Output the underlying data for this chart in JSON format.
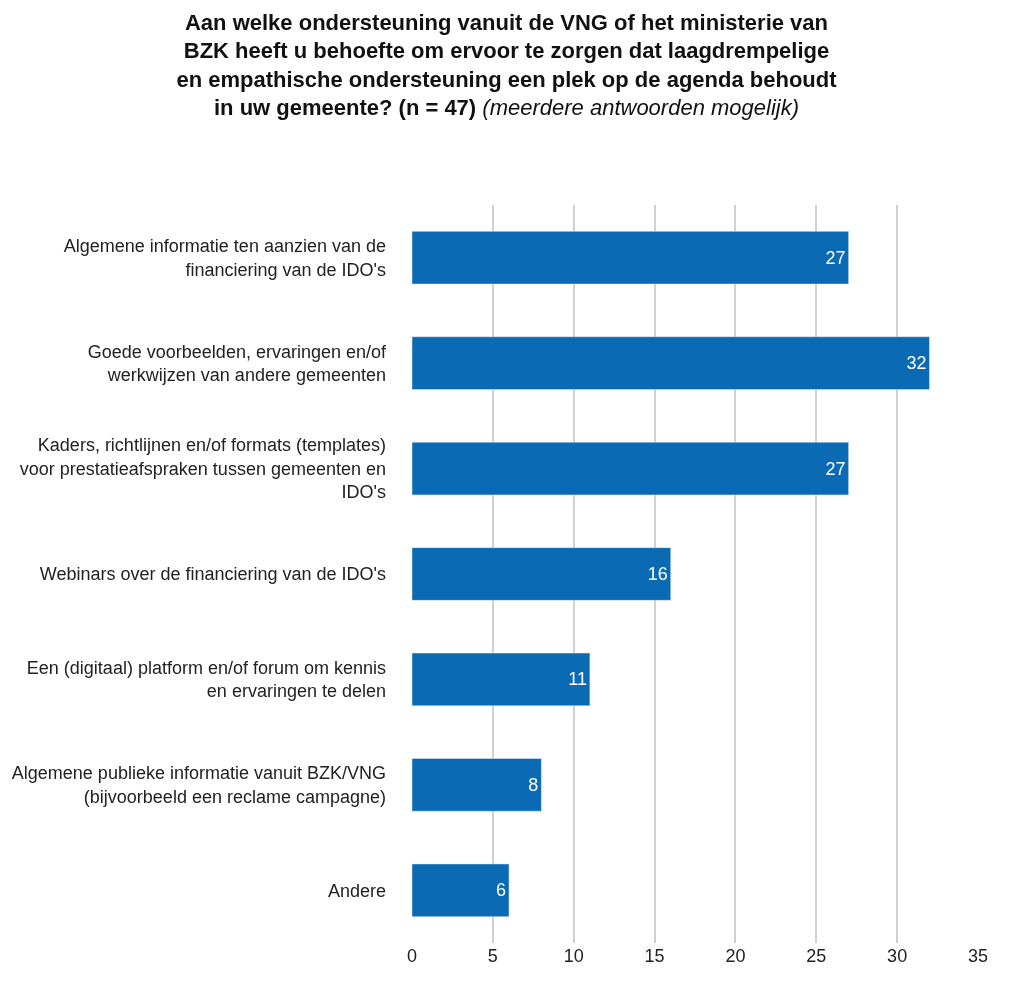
{
  "chart_data": {
    "type": "bar",
    "orientation": "horizontal",
    "title": "Aan welke ondersteuning vanuit de VNG of het ministerie van BZK heeft u behoefte om ervoor te zorgen dat laagdrempelige en empathische ondersteuning een plek op de agenda behoudt in uw gemeente? (n = 47)",
    "subtitle": "(meerdere antwoorden mogelijk)",
    "categories": [
      "Algemene informatie ten aanzien van de financiering van de IDO's",
      "Goede voorbeelden, ervaringen en/of werkwijzen van andere gemeenten",
      "Kaders, richtlijnen en/of formats (templates) voor prestatieafspraken tussen gemeenten en IDO's",
      "Webinars over de financiering van de IDO's",
      "Een (digitaal) platform en/of forum om kennis en ervaringen te delen",
      "Algemene publieke informatie vanuit BZK/VNG (bijvoorbeeld een reclame campagne)",
      "Andere"
    ],
    "values": [
      27,
      32,
      27,
      16,
      11,
      8,
      6
    ],
    "color": "#0a6ab4",
    "xlim": [
      0,
      35
    ],
    "xticks": [
      0,
      5,
      10,
      15,
      20,
      25,
      30,
      35
    ],
    "grid": "x",
    "data_labels": true
  }
}
